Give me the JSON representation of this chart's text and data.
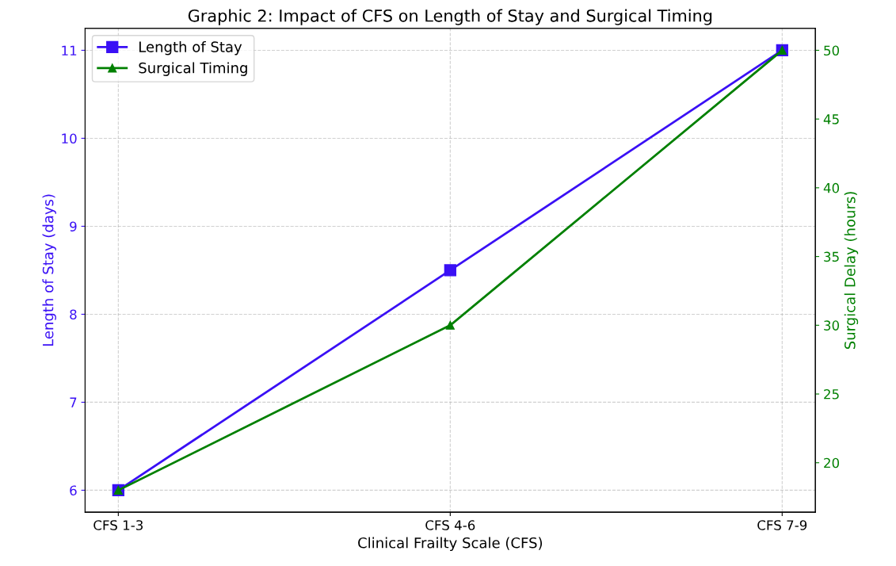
{
  "chart_data": {
    "type": "line",
    "title": "Graphic 2: Impact of CFS on Length of Stay and Surgical Timing",
    "xlabel": "Clinical Frailty Scale (CFS)",
    "ylabel": "Length of Stay (days)",
    "y2label": "Surgical Delay (hours)",
    "categories": [
      "CFS 1-3",
      "CFS 4-6",
      "CFS 7-9"
    ],
    "series": [
      {
        "name": "Length of Stay",
        "color": "#3a10f5",
        "values": [
          6,
          8.5,
          11
        ],
        "marker": "square"
      },
      {
        "name": "Surgical Timing",
        "color": "#008000",
        "values": [
          18,
          30,
          50
        ],
        "marker": "triangle",
        "axis": "y2"
      }
    ],
    "ylim": [
      5.75,
      11.25
    ],
    "yticks": [
      6,
      7,
      8,
      9,
      10,
      11
    ],
    "y2lim": [
      16.4,
      51.6
    ],
    "y2ticks": [
      20,
      25,
      30,
      35,
      40,
      45,
      50
    ],
    "grid": true,
    "legend": "top left",
    "line_style": "solid"
  }
}
